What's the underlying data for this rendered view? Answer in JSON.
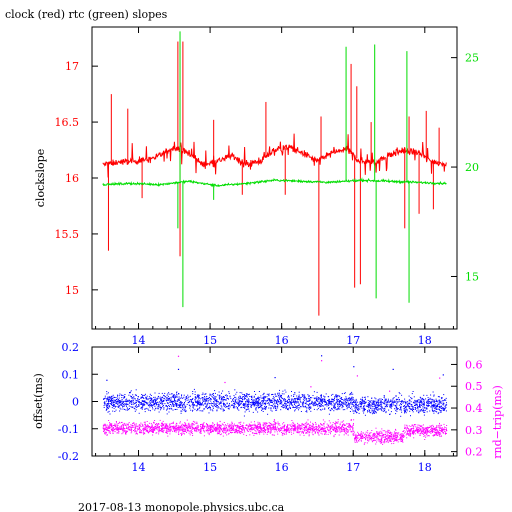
{
  "title": "clock (red) rtc (green) slopes",
  "footer": "2017-08-13  monopole.physics.ubc.ca",
  "colors": {
    "clock": "#ff0000",
    "rtc": "#00dd00",
    "offset": "#0000ff",
    "rndtrip": "#ff00ff",
    "frame": "#000000"
  },
  "chart_data": [
    {
      "type": "line",
      "ylabel": "clockslope",
      "y2label": "",
      "xlim": [
        13.35,
        18.45
      ],
      "ylim": [
        14.65,
        17.35
      ],
      "y2lim": [
        12.6,
        26.4
      ],
      "x_ticks": [
        14,
        15,
        16,
        17,
        18
      ],
      "y_ticks": [
        15,
        15.5,
        16,
        16.5,
        17
      ],
      "y2_ticks": [
        15,
        20,
        25
      ],
      "series": [
        {
          "name": "clock",
          "axis": "left",
          "color": "#ff0000",
          "x": [
            13.5,
            13.7,
            13.9,
            14.1,
            14.3,
            14.5,
            14.7,
            14.9,
            15.1,
            15.3,
            15.5,
            15.7,
            15.9,
            16.1,
            16.3,
            16.5,
            16.7,
            16.9,
            17.1,
            17.3,
            17.5,
            17.7,
            17.9,
            18.1,
            18.3
          ],
          "y": [
            16.12,
            16.14,
            16.15,
            16.16,
            16.2,
            16.28,
            16.22,
            16.12,
            16.15,
            16.2,
            16.12,
            16.15,
            16.25,
            16.28,
            16.22,
            16.15,
            16.22,
            16.26,
            16.15,
            16.14,
            16.2,
            16.25,
            16.22,
            16.15,
            16.12
          ],
          "spikes": [
            {
              "x": 13.58,
              "y": 15.35
            },
            {
              "x": 13.62,
              "y": 16.75
            },
            {
              "x": 13.85,
              "y": 16.62
            },
            {
              "x": 14.05,
              "y": 15.82
            },
            {
              "x": 14.55,
              "y": 17.22
            },
            {
              "x": 14.58,
              "y": 15.3
            },
            {
              "x": 14.62,
              "y": 17.22
            },
            {
              "x": 15.05,
              "y": 16.52
            },
            {
              "x": 15.45,
              "y": 15.85
            },
            {
              "x": 15.78,
              "y": 16.68
            },
            {
              "x": 16.05,
              "y": 15.85
            },
            {
              "x": 16.52,
              "y": 14.77
            },
            {
              "x": 16.55,
              "y": 16.55
            },
            {
              "x": 16.97,
              "y": 17.02
            },
            {
              "x": 17.02,
              "y": 15.02
            },
            {
              "x": 17.05,
              "y": 16.82
            },
            {
              "x": 17.1,
              "y": 15.05
            },
            {
              "x": 17.25,
              "y": 16.5
            },
            {
              "x": 17.72,
              "y": 15.55
            },
            {
              "x": 17.78,
              "y": 16.55
            },
            {
              "x": 17.92,
              "y": 15.68
            },
            {
              "x": 18.02,
              "y": 16.6
            },
            {
              "x": 18.12,
              "y": 15.72
            },
            {
              "x": 18.2,
              "y": 16.45
            }
          ]
        },
        {
          "name": "rtc",
          "axis": "right",
          "color": "#00dd00",
          "x": [
            13.5,
            13.9,
            14.3,
            14.7,
            15.1,
            15.5,
            15.9,
            16.3,
            16.7,
            17.1,
            17.5,
            17.9,
            18.3
          ],
          "y": [
            19.2,
            19.25,
            19.2,
            19.35,
            19.15,
            19.25,
            19.4,
            19.35,
            19.3,
            19.4,
            19.35,
            19.3,
            19.25
          ],
          "spikes": [
            {
              "x": 14.55,
              "y": 17.2
            },
            {
              "x": 14.58,
              "y": 26.2
            },
            {
              "x": 14.62,
              "y": 13.6
            },
            {
              "x": 15.05,
              "y": 18.5
            },
            {
              "x": 16.9,
              "y": 25.5
            },
            {
              "x": 17.3,
              "y": 25.6
            },
            {
              "x": 17.32,
              "y": 14.0
            },
            {
              "x": 17.75,
              "y": 25.3
            },
            {
              "x": 17.78,
              "y": 13.8
            }
          ]
        }
      ]
    },
    {
      "type": "scatter",
      "ylabel": "offset(ms)",
      "y2label": "rnd−trip(ms)",
      "xlim": [
        13.35,
        18.45
      ],
      "ylim": [
        -0.2,
        0.2
      ],
      "y2lim": [
        0.18,
        0.68
      ],
      "x_ticks": [
        14,
        15,
        16,
        17,
        18
      ],
      "y_ticks": [
        -0.2,
        -0.1,
        0,
        0.1,
        0.2
      ],
      "y2_ticks": [
        0.2,
        0.3,
        0.4,
        0.5,
        0.6
      ],
      "series": [
        {
          "name": "offset",
          "axis": "left",
          "color": "#0000ff",
          "x_range": [
            13.5,
            18.3
          ],
          "center_segments": [
            {
              "x": [
                13.5,
                17.0
              ],
              "y": 0.0
            },
            {
              "x": [
                17.0,
                18.3
              ],
              "y": -0.01
            }
          ],
          "spread": 0.035,
          "outliers": [
            {
              "x": 13.55,
              "y": 0.08
            },
            {
              "x": 14.55,
              "y": 0.12
            },
            {
              "x": 15.9,
              "y": 0.09
            },
            {
              "x": 16.55,
              "y": 0.17
            },
            {
              "x": 17.0,
              "y": 0.13
            },
            {
              "x": 17.55,
              "y": 0.12
            },
            {
              "x": 18.25,
              "y": 0.1
            }
          ]
        },
        {
          "name": "rnd-trip",
          "axis": "right",
          "color": "#ff00ff",
          "x_range": [
            13.5,
            18.3
          ],
          "center_segments": [
            {
              "x": [
                13.5,
                17.0
              ],
              "y": 0.31
            },
            {
              "x": [
                17.0,
                17.7
              ],
              "y": 0.27
            },
            {
              "x": [
                17.7,
                18.3
              ],
              "y": 0.3
            }
          ],
          "spread": 0.03,
          "outliers": [
            {
              "x": 14.55,
              "y": 0.64
            },
            {
              "x": 15.2,
              "y": 0.52
            },
            {
              "x": 16.4,
              "y": 0.5
            },
            {
              "x": 16.55,
              "y": 0.62
            },
            {
              "x": 17.05,
              "y": 0.55
            },
            {
              "x": 17.5,
              "y": 0.48
            },
            {
              "x": 18.2,
              "y": 0.54
            }
          ]
        }
      ]
    }
  ]
}
